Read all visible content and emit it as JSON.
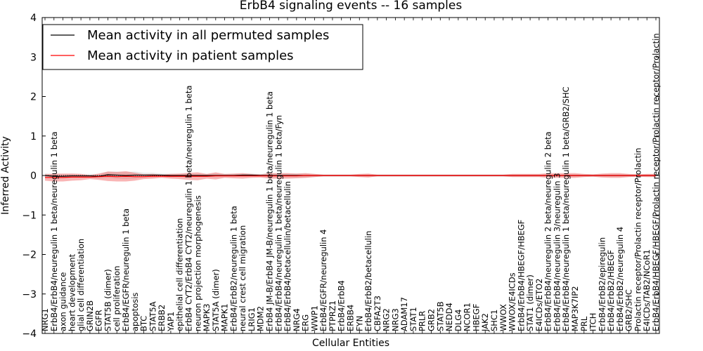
{
  "chart_data": {
    "type": "line",
    "title": "ErbB4 signaling events -- 16 samples",
    "xlabel": "Cellular Entities",
    "ylabel": "Inferred Activity",
    "ylim": [
      -4,
      4
    ],
    "yticks": [
      -4,
      -3,
      -2,
      -1,
      0,
      1,
      2,
      3,
      4
    ],
    "grid": false,
    "legend_position": "top-left",
    "categories": [
      "NRG1",
      "ErbB4/ErbB4/neuregulin 1 beta/neuregulin 1 beta",
      "axon guidance",
      "heart development",
      "glial cell differentiation",
      "GRIN2B",
      "EGFR",
      "STAT5B (dimer)",
      "cell proliferation",
      "ErbB4/EGFR/neuregulin 1 beta",
      "apoptosis",
      "BTC",
      "STAT5A",
      "ERBB2",
      "YAP1",
      "epithelial cell differentiation",
      "ErbB4 CYT2/ErbB4 CYT2/neuregulin 1 beta/neuregulin 1 beta",
      "neuron projection morphogenesis",
      "MAPK3",
      "STAT5A (dimer)",
      "MAPK1",
      "ErbB4/ErbB2/neuregulin 1 beta",
      "neural crest cell migration",
      "LRIG1",
      "MDM2",
      "ErbB4 JM-B/ErbB4 JM-B/neuregulin 1 beta/neuregulin 1 beta",
      "ErbB4/ErbB4/neuregulin 1 beta/neuregulin 1 beta/Fyn",
      "ErbB4/ErbB4/betacellulin/betacellulin",
      "NRG4",
      "ERG",
      "WWP1",
      "ErbB4/EGFR/neuregulin 4",
      "PTPRZ1",
      "ErbB4/ErbB4",
      "ERBB4",
      "FYN",
      "ErbB4/ErbB2/betacellulin",
      "CBFA2T3",
      "NRG2",
      "NRG3",
      "ADAM17",
      "STAT1",
      "PRLR",
      "GRB2",
      "STAT5B",
      "NEDD4",
      "DLG4",
      "NCOR1",
      "HBEGF",
      "JAK2",
      "SHC1",
      "WWOX",
      "WWOX/E4ICDs",
      "ErbB4/ErbB4/HBEGF/HBEGF",
      "STAT1 (dimer)",
      "E4ICDs/ETO2",
      "ErbB4/ErbB4/neuregulin 2 beta/neuregulin 2 beta",
      "ErbB4/ErbB4/neuregulin 3/neuregulin 3",
      "ErbB4/ErbB4/neuregulin 1 beta/neuregulin 1 beta/GRB2/SHC",
      "MAP3K7IP2",
      "PRL",
      "ITCH",
      "ErbB4/ErbB2/epiregulin",
      "ErbB4/ErbB2/HBEGF",
      "ErbB4/ErbB2/neuregulin 4",
      "GRB2/SHC",
      "Prolactin receptor/Prolactin receptor/Prolactin",
      "E4ICDs/TAB2/NCoR1",
      "ErbB4/ErbB4/HBEGF/HBEGF/Prolactin receptor/Prolactin receptor/Prolactin"
    ],
    "series": [
      {
        "name": "Mean activity in all permuted samples",
        "color": "#000000",
        "values": [
          0,
          -0.02,
          -0.02,
          -0.01,
          -0.01,
          -0.01,
          -0.02,
          0.02,
          0.01,
          0,
          0.01,
          0.01,
          0.01,
          0.01,
          0,
          0,
          0,
          0,
          0,
          0,
          0,
          0,
          0.01,
          0.01,
          0,
          0,
          0,
          0,
          0,
          0,
          0,
          0,
          0,
          0,
          0,
          0,
          0,
          0,
          0,
          0,
          0,
          0,
          0,
          0,
          0,
          0,
          0,
          0,
          0,
          0,
          0,
          0,
          0,
          0,
          0,
          0,
          0,
          0,
          0,
          0,
          0,
          0,
          0,
          0,
          0,
          0,
          0,
          0,
          0
        ],
        "band": [
          0.06,
          0.05,
          0.05,
          0.05,
          0.05,
          0.05,
          0.06,
          0.08,
          0.09,
          0.09,
          0.09,
          0.06,
          0.06,
          0.04,
          0.05,
          0.04,
          0.04,
          0.04,
          0.04,
          0.05,
          0.04,
          0.04,
          0.04,
          0.04,
          0.04,
          0.05,
          0.05,
          0.05,
          0.05,
          0.05,
          0.04,
          0.03,
          0.03,
          0.03,
          0.03,
          0.03,
          0.03,
          0.03,
          0.03,
          0.03,
          0.03,
          0.03,
          0.03,
          0.03,
          0.03,
          0.03,
          0.03,
          0.03,
          0.03,
          0.03,
          0.03,
          0.03,
          0.03,
          0.03,
          0.03,
          0.03,
          0.03,
          0.03,
          0.03,
          0.03,
          0.03,
          0.03,
          0.03,
          0.03,
          0.03,
          0.03,
          0.03,
          0.03,
          0.03
        ]
      },
      {
        "name": "Mean activity in patient samples",
        "color": "#ff0000",
        "values": [
          -0.05,
          -0.05,
          -0.05,
          -0.04,
          -0.04,
          -0.04,
          -0.03,
          -0.02,
          -0.03,
          -0.02,
          -0.03,
          -0.03,
          -0.02,
          -0.02,
          -0.02,
          -0.02,
          -0.02,
          -0.02,
          -0.02,
          -0.01,
          -0.01,
          -0.01,
          -0.01,
          -0.01,
          -0.01,
          -0.01,
          -0.01,
          -0.01,
          -0.01,
          0,
          0,
          0,
          0,
          0,
          0,
          0,
          0,
          0,
          0,
          0,
          0,
          0,
          0,
          0,
          0,
          0,
          0,
          0,
          0,
          0,
          0,
          0,
          0,
          0,
          0,
          0,
          0,
          0,
          0,
          0,
          0,
          0,
          0,
          0,
          0,
          0,
          0,
          0,
          0
        ],
        "band": [
          0.08,
          0.1,
          0.1,
          0.09,
          0.08,
          0.05,
          0.08,
          0.12,
          0.12,
          0.13,
          0.1,
          0.06,
          0.06,
          0.04,
          0.06,
          0.07,
          0.09,
          0.1,
          0.06,
          0.09,
          0.05,
          0.06,
          0.07,
          0.05,
          0.04,
          0.07,
          0.07,
          0.07,
          0.06,
          0.06,
          0.04,
          0.02,
          0.02,
          0.02,
          0.02,
          0.04,
          0.05,
          0.02,
          0.02,
          0.02,
          0.02,
          0.02,
          0.02,
          0.02,
          0.02,
          0.02,
          0.02,
          0.02,
          0.02,
          0.02,
          0.02,
          0.02,
          0.04,
          0.04,
          0.04,
          0.04,
          0.06,
          0.06,
          0.06,
          0.06,
          0.04,
          0.03,
          0.05,
          0.06,
          0.06,
          0.04,
          0.03,
          0.04,
          0.04
        ]
      }
    ]
  }
}
